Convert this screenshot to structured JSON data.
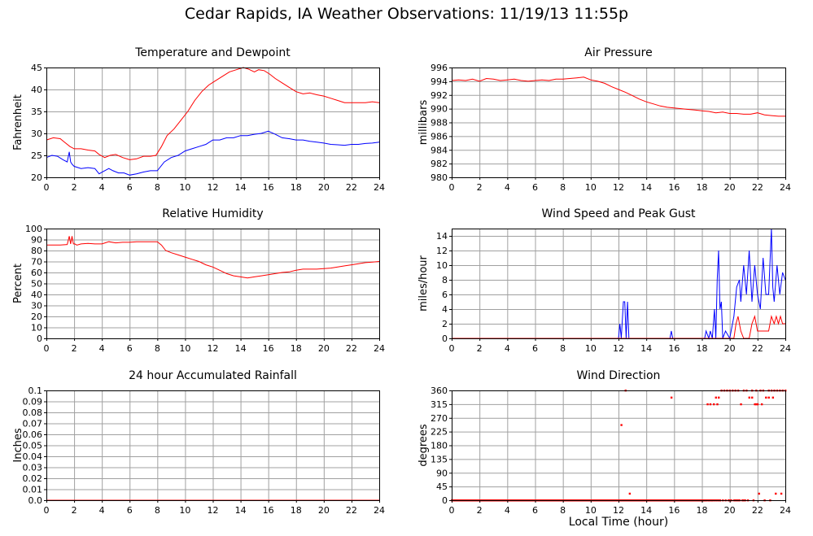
{
  "page": {
    "title": "Cedar Rapids, IA Weather Observations: 11/19/13 11:55p",
    "xlabel": "Local Time (hour)"
  },
  "colors": {
    "red": "#ff0000",
    "blue": "#0000ff",
    "grid": "#a0a0a0",
    "frame": "#000000"
  },
  "chart_data": [
    {
      "id": "temp",
      "type": "line",
      "title": "Temperature and Dewpoint",
      "xlabel": "",
      "ylabel": "Fahrenheit",
      "xlim": [
        0,
        24
      ],
      "ylim": [
        20,
        45
      ],
      "xticks": [
        0,
        2,
        4,
        6,
        8,
        10,
        12,
        14,
        16,
        18,
        20,
        22,
        24
      ],
      "yticks": [
        20,
        25,
        30,
        35,
        40,
        45
      ],
      "ytick_labels": [
        "20",
        "25",
        "30",
        "35",
        "40",
        "45"
      ],
      "grid": true,
      "series": [
        {
          "color": "#ff0000",
          "x": [
            0,
            0.5,
            1,
            1.3,
            1.7,
            2,
            2.5,
            3,
            3.5,
            3.8,
            4.2,
            4.6,
            5,
            5.5,
            6,
            6.5,
            7,
            7.5,
            7.9,
            8.3,
            8.7,
            9.2,
            9.7,
            10.2,
            10.7,
            11.2,
            11.7,
            12.2,
            12.7,
            13.2,
            13.7,
            14.2,
            14.6,
            15,
            15.3,
            15.7,
            16.1,
            16.5,
            17,
            17.5,
            18,
            18.5,
            19,
            19.5,
            20,
            20.5,
            21,
            21.5,
            22,
            22.5,
            23,
            23.5,
            24
          ],
          "y": [
            28.5,
            29,
            28.8,
            28,
            27,
            26.5,
            26.5,
            26.2,
            26,
            25.2,
            24.5,
            25,
            25.2,
            24.5,
            24,
            24.2,
            24.8,
            24.8,
            25,
            27,
            29.5,
            31,
            33,
            35,
            37.5,
            39.5,
            41,
            42,
            43,
            44,
            44.5,
            45,
            44.6,
            44,
            44.5,
            44.3,
            43.5,
            42.5,
            41.5,
            40.5,
            39.5,
            39,
            39.2,
            38.8,
            38.5,
            38,
            37.5,
            37,
            37,
            37,
            37,
            37.2,
            37
          ]
        },
        {
          "color": "#0000ff",
          "x": [
            0,
            0.4,
            0.8,
            1.2,
            1.5,
            1.65,
            1.75,
            1.85,
            2,
            2.5,
            3,
            3.5,
            3.8,
            4.2,
            4.5,
            4.8,
            5.2,
            5.6,
            6,
            6.5,
            7,
            7.5,
            8,
            8.5,
            9,
            9.5,
            10,
            10.5,
            11,
            11.5,
            12,
            12.5,
            13,
            13.5,
            14,
            14.5,
            15,
            15.5,
            16,
            16.5,
            17,
            17.5,
            18,
            18.5,
            19,
            19.5,
            20,
            20.5,
            21,
            21.5,
            22,
            22.5,
            23,
            23.5,
            24
          ],
          "y": [
            24.5,
            25,
            24.8,
            24,
            23.5,
            25.8,
            23.5,
            23,
            22.5,
            22,
            22.2,
            22,
            20.8,
            21.5,
            22,
            21.5,
            21,
            21,
            20.5,
            20.8,
            21.2,
            21.5,
            21.5,
            23.5,
            24.5,
            25,
            26,
            26.5,
            27,
            27.5,
            28.5,
            28.5,
            29,
            29,
            29.5,
            29.5,
            29.8,
            30,
            30.5,
            29.8,
            29,
            28.8,
            28.5,
            28.5,
            28.2,
            28,
            27.8,
            27.5,
            27.4,
            27.3,
            27.5,
            27.5,
            27.7,
            27.8,
            28
          ]
        }
      ]
    },
    {
      "id": "pressure",
      "type": "line",
      "title": "Air Pressure",
      "xlabel": "",
      "ylabel": "millibars",
      "xlim": [
        0,
        24
      ],
      "ylim": [
        980,
        996
      ],
      "xticks": [
        0,
        2,
        4,
        6,
        8,
        10,
        12,
        14,
        16,
        18,
        20,
        22,
        24
      ],
      "yticks": [
        980,
        982,
        984,
        986,
        988,
        990,
        992,
        994,
        996
      ],
      "ytick_labels": [
        "980",
        "982",
        "984",
        "986",
        "988",
        "990",
        "992",
        "994",
        "996"
      ],
      "grid": true,
      "series": [
        {
          "color": "#ff0000",
          "x": [
            0,
            0.5,
            1,
            1.5,
            2,
            2.5,
            3,
            3.5,
            4,
            4.5,
            5,
            5.5,
            6,
            6.5,
            7,
            7.5,
            8,
            8.5,
            9,
            9.5,
            10,
            10.5,
            11,
            11.5,
            12,
            12.5,
            13,
            13.5,
            14,
            14.5,
            15,
            15.5,
            16,
            16.5,
            17,
            17.5,
            18,
            18.5,
            19,
            19.5,
            20,
            20.5,
            21,
            21.5,
            22,
            22.5,
            23,
            23.5,
            24
          ],
          "y": [
            994.1,
            994.2,
            994.1,
            994.3,
            994,
            994.4,
            994.3,
            994.1,
            994.2,
            994.3,
            994.1,
            994,
            994.1,
            994.2,
            994.1,
            994.3,
            994.3,
            994.4,
            994.5,
            994.6,
            994.2,
            994,
            993.7,
            993.2,
            992.8,
            992.4,
            991.9,
            991.4,
            991,
            990.7,
            990.4,
            990.2,
            990.1,
            990,
            989.9,
            989.8,
            989.7,
            989.6,
            989.4,
            989.5,
            989.3,
            989.3,
            989.2,
            989.2,
            989.4,
            989.1,
            989,
            988.9,
            988.9
          ]
        }
      ]
    },
    {
      "id": "humidity",
      "type": "line",
      "title": "Relative Humidity",
      "xlabel": "",
      "ylabel": "Percent",
      "xlim": [
        0,
        24
      ],
      "ylim": [
        0,
        100
      ],
      "xticks": [
        0,
        2,
        4,
        6,
        8,
        10,
        12,
        14,
        16,
        18,
        20,
        22,
        24
      ],
      "yticks": [
        0,
        10,
        20,
        30,
        40,
        50,
        60,
        70,
        80,
        90,
        100
      ],
      "ytick_labels": [
        "0",
        "10",
        "20",
        "30",
        "40",
        "50",
        "60",
        "70",
        "80",
        "90",
        "100"
      ],
      "grid": true,
      "series": [
        {
          "color": "#ff0000",
          "x": [
            0,
            0.5,
            1,
            1.5,
            1.65,
            1.75,
            1.85,
            1.95,
            2.05,
            2.2,
            2.5,
            3,
            3.5,
            4,
            4.5,
            5,
            5.5,
            6,
            6.5,
            7,
            7.5,
            8,
            8.3,
            8.6,
            9,
            9.5,
            10,
            10.5,
            11,
            11.5,
            12,
            12.5,
            13,
            13.5,
            14,
            14.5,
            15,
            15.5,
            16,
            16.5,
            17,
            17.5,
            18,
            18.5,
            19,
            19.5,
            20,
            20.5,
            21,
            21.5,
            22,
            22.5,
            23,
            23.5,
            24
          ],
          "y": [
            85,
            85,
            85,
            85.5,
            93,
            86,
            93,
            86,
            86,
            85,
            86,
            86.5,
            86,
            86,
            88,
            87,
            87.5,
            87.5,
            88,
            88,
            88,
            88,
            85,
            80,
            78,
            76,
            74,
            72,
            70,
            67,
            65,
            62,
            59,
            57,
            56,
            55,
            56,
            57,
            58,
            59,
            60,
            60.5,
            62,
            63,
            63,
            63,
            63.5,
            64,
            65,
            66,
            67,
            68,
            69,
            69.5,
            70
          ]
        }
      ]
    },
    {
      "id": "wind",
      "type": "line",
      "title": "Wind Speed and Peak Gust",
      "xlabel": "",
      "ylabel": "miles/hour",
      "xlim": [
        0,
        24
      ],
      "ylim": [
        0,
        15
      ],
      "xticks": [
        0,
        2,
        4,
        6,
        8,
        10,
        12,
        14,
        16,
        18,
        20,
        22,
        24
      ],
      "yticks": [
        0,
        2,
        4,
        6,
        8,
        10,
        12,
        14
      ],
      "ytick_labels": [
        "0",
        "2",
        "4",
        "6",
        "8",
        "10",
        "12",
        "14"
      ],
      "grid": true,
      "series": [
        {
          "color": "#0000ff",
          "x": [
            0,
            12,
            12.1,
            12.2,
            12.35,
            12.45,
            12.55,
            12.65,
            12.75,
            12.85,
            15.7,
            15.8,
            15.9,
            18.2,
            18.3,
            18.5,
            18.6,
            18.75,
            18.9,
            19,
            19.1,
            19.2,
            19.3,
            19.4,
            19.5,
            19.7,
            20,
            20.3,
            20.5,
            20.7,
            20.8,
            21,
            21.2,
            21.4,
            21.6,
            21.8,
            22,
            22.2,
            22.4,
            22.6,
            22.8,
            23,
            23.1,
            23.2,
            23.4,
            23.6,
            23.8,
            24
          ],
          "y": [
            0,
            0,
            2,
            0,
            5,
            5,
            0,
            5,
            0,
            0,
            0,
            1,
            0,
            0,
            1,
            0,
            1,
            0,
            4,
            0,
            8,
            12,
            4,
            5,
            0,
            1,
            0,
            3,
            7,
            8,
            5,
            10,
            6,
            12,
            5,
            10,
            6,
            4,
            11,
            6,
            6,
            15,
            7,
            5,
            10,
            6,
            9,
            8
          ]
        },
        {
          "color": "#ff0000",
          "x": [
            0,
            20.3,
            20.45,
            20.6,
            20.8,
            21,
            21.4,
            21.6,
            21.8,
            22,
            22.1,
            22.8,
            23,
            23.2,
            23.35,
            23.5,
            23.65,
            23.8,
            24
          ],
          "y": [
            0,
            0,
            2,
            3,
            1,
            0,
            0,
            2,
            3,
            1,
            1,
            1,
            3,
            2,
            3,
            2,
            3,
            2,
            2
          ]
        }
      ]
    },
    {
      "id": "rain",
      "type": "line",
      "title": "24 hour Accumulated Rainfall",
      "xlabel": "",
      "ylabel": "Inches",
      "xlim": [
        0,
        24
      ],
      "ylim": [
        0,
        0.1
      ],
      "xticks": [
        0,
        2,
        4,
        6,
        8,
        10,
        12,
        14,
        16,
        18,
        20,
        22,
        24
      ],
      "yticks": [
        0,
        0.01,
        0.02,
        0.03,
        0.04,
        0.05,
        0.06,
        0.07,
        0.08,
        0.09,
        0.1
      ],
      "ytick_labels": [
        "0.0",
        "0.01",
        "0.02",
        "0.03",
        "0.04",
        "0.05",
        "0.06",
        "0.07",
        "0.08",
        "0.09",
        "0.1"
      ],
      "grid": true,
      "series": [
        {
          "color": "#ff0000",
          "x": [
            0,
            24
          ],
          "y": [
            0,
            0
          ]
        }
      ]
    },
    {
      "id": "direction",
      "type": "scatter",
      "title": "Wind Direction",
      "xlabel": "Local Time (hour)",
      "ylabel": "degrees",
      "xlim": [
        0,
        24
      ],
      "ylim": [
        0,
        360
      ],
      "xticks": [
        0,
        2,
        4,
        6,
        8,
        10,
        12,
        14,
        16,
        18,
        20,
        22,
        24
      ],
      "yticks": [
        0,
        45,
        90,
        135,
        180,
        225,
        270,
        315,
        360
      ],
      "ytick_labels": [
        "0",
        "45",
        "90",
        "135",
        "180",
        "225",
        "270",
        "315",
        "360"
      ],
      "grid": true,
      "zero_run": {
        "from": 0,
        "to": 18.3,
        "step": 0.05
      },
      "series": [
        {
          "color": "#ff0000",
          "x": [
            12.2,
            12.5,
            12.8,
            15.8,
            18.4,
            18.6,
            18.85,
            19,
            19.2,
            19.4,
            19.6,
            19.8,
            20,
            20.2,
            20.4,
            20.6,
            20.8,
            21,
            21.2,
            21.4,
            21.6,
            21.8,
            22,
            22.2,
            22.4,
            22.6,
            22.8,
            23,
            23.2,
            23.4,
            23.6,
            23.8,
            24,
            18.5,
            18.7,
            19.3,
            20.5,
            21.3,
            21.7,
            22.1,
            22.5,
            22.9,
            23.3,
            23.7,
            19.1,
            21.6,
            21.9,
            22.3,
            22.8,
            23.1,
            21.9,
            18.2,
            18.3,
            18.4,
            18.5,
            18.6,
            18.7,
            18.8,
            18.9,
            19.0,
            19.1,
            19.2,
            19.3,
            19.5,
            19.7,
            19.9,
            20.0,
            20.1,
            20.3,
            20.4,
            20.6,
            20.7,
            20.9,
            21.0,
            21.1
          ],
          "y": [
            247,
            360,
            22,
            337,
            315,
            315,
            315,
            337,
            337,
            360,
            360,
            360,
            360,
            360,
            360,
            360,
            315,
            360,
            360,
            337,
            360,
            315,
            315,
            360,
            360,
            337,
            360,
            360,
            360,
            360,
            360,
            360,
            360,
            0,
            0,
            0,
            0,
            0,
            0,
            22,
            0,
            0,
            22,
            22,
            315,
            337,
            315,
            315,
            337,
            337,
            360,
            0,
            0,
            0,
            0,
            0,
            0,
            0,
            0,
            0,
            0,
            0,
            0,
            0,
            0,
            0,
            0,
            0,
            0,
            0,
            0,
            0,
            0,
            0,
            0
          ]
        }
      ]
    }
  ]
}
